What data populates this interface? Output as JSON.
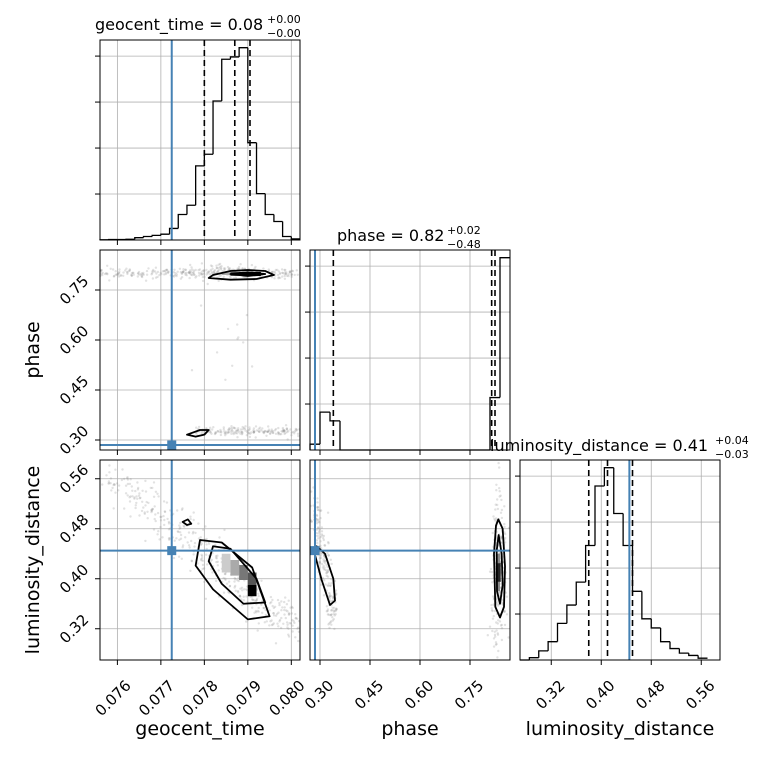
{
  "colors": {
    "truth": "#4682b4",
    "histogram": "#000000",
    "contour": "#000000",
    "samples": "#8a8a8a",
    "grid": "#b0b0b0"
  },
  "chart_data": {
    "type": "corner",
    "parameters": [
      {
        "name": "geocent_time",
        "xlabel": "geocent_time",
        "range": [
          0.0756,
          0.0802
        ],
        "ticks": [
          0.076,
          0.077,
          0.078,
          0.079,
          0.08
        ],
        "tick_labels": [
          "0.076",
          "0.077",
          "0.078",
          "0.079",
          "0.080"
        ],
        "truth": 0.07725,
        "quantiles": [
          0.078,
          0.0787,
          0.07905
        ],
        "title_value": "0.08",
        "title_plus": "+0.00",
        "title_minus": "−0.00",
        "hist_edges": [
          0.0756,
          0.0758,
          0.076,
          0.0762,
          0.0764,
          0.0766,
          0.0768,
          0.077,
          0.0772,
          0.0774,
          0.0776,
          0.0778,
          0.078,
          0.0782,
          0.0784,
          0.0786,
          0.0788,
          0.079,
          0.0792,
          0.0794,
          0.0796,
          0.0798,
          0.08,
          0.0802
        ],
        "hist_counts": [
          0.1,
          0.2,
          0.2,
          0.3,
          1,
          1.5,
          2,
          2.5,
          5,
          11,
          15,
          32,
          37,
          60,
          78,
          79,
          83,
          42,
          20,
          11,
          8,
          1.5,
          0.5
        ]
      },
      {
        "name": "phase",
        "xlabel": "phase",
        "ylabel": "phase",
        "range": [
          0.27,
          0.87
        ],
        "ticks": [
          0.3,
          0.45,
          0.6,
          0.75
        ],
        "tick_labels": [
          "0.30",
          "0.45",
          "0.60",
          "0.75"
        ],
        "truth": 0.285,
        "quantiles": [
          0.34,
          0.815,
          0.825
        ],
        "title_value": "0.82",
        "title_plus": "+0.02",
        "title_minus": "−0.48",
        "hist_edges": [
          0.27,
          0.3,
          0.33,
          0.36,
          0.39,
          0.42,
          0.45,
          0.48,
          0.51,
          0.54,
          0.57,
          0.6,
          0.63,
          0.66,
          0.69,
          0.72,
          0.75,
          0.78,
          0.81,
          0.84,
          0.87
        ],
        "hist_counts": [
          2,
          13,
          10,
          0,
          0,
          0,
          0,
          0,
          0,
          0,
          0,
          0,
          0,
          0,
          0,
          0,
          0,
          0,
          18,
          66
        ]
      },
      {
        "name": "luminosity_distance",
        "xlabel": "luminosity_distance",
        "ylabel": "luminosity_distance",
        "range": [
          0.27,
          0.59
        ],
        "ticks": [
          0.32,
          0.4,
          0.48,
          0.56
        ],
        "tick_labels": [
          "0.32",
          "0.40",
          "0.48",
          "0.56"
        ],
        "truth": 0.445,
        "quantiles": [
          0.38,
          0.41,
          0.45
        ],
        "title_value": "0.41",
        "title_plus": "+0.04",
        "title_minus": "−0.03",
        "hist_edges": [
          0.27,
          0.285,
          0.3,
          0.315,
          0.33,
          0.345,
          0.36,
          0.375,
          0.39,
          0.405,
          0.42,
          0.435,
          0.45,
          0.465,
          0.48,
          0.495,
          0.51,
          0.525,
          0.54,
          0.555,
          0.57
        ],
        "hist_counts": [
          0,
          0.5,
          2,
          4,
          8,
          12,
          17,
          25,
          38,
          42,
          32,
          25,
          15,
          9,
          7,
          4,
          2.5,
          1.5,
          1,
          0.4
        ]
      }
    ],
    "contours": {
      "phase_vs_geocent_time": [
        [
          [
            0.0782,
            0.795
          ],
          [
            0.0786,
            0.807
          ],
          [
            0.079,
            0.81
          ],
          [
            0.0794,
            0.807
          ],
          [
            0.0796,
            0.795
          ],
          [
            0.0792,
            0.783
          ],
          [
            0.0786,
            0.781
          ],
          [
            0.0781,
            0.786
          ]
        ],
        [
          [
            0.0786,
            0.798
          ],
          [
            0.079,
            0.803
          ],
          [
            0.0794,
            0.798
          ],
          [
            0.079,
            0.792
          ]
        ],
        [
          [
            0.0776,
            0.316
          ],
          [
            0.0779,
            0.33
          ],
          [
            0.0781,
            0.33
          ],
          [
            0.078,
            0.316
          ],
          [
            0.0778,
            0.31
          ]
        ]
      ],
      "luminosity_distance_vs_geocent_time": [
        [
          [
            0.0779,
            0.462
          ],
          [
            0.0784,
            0.458
          ],
          [
            0.0791,
            0.418
          ],
          [
            0.0795,
            0.34
          ],
          [
            0.079,
            0.335
          ],
          [
            0.0782,
            0.383
          ],
          [
            0.0778,
            0.421
          ]
        ],
        [
          [
            0.0782,
            0.452
          ],
          [
            0.0786,
            0.448
          ],
          [
            0.0792,
            0.4
          ],
          [
            0.0794,
            0.362
          ],
          [
            0.0789,
            0.36
          ],
          [
            0.0784,
            0.392
          ],
          [
            0.0781,
            0.428
          ]
        ],
        [
          [
            0.0775,
            0.491
          ],
          [
            0.07762,
            0.495
          ],
          [
            0.0777,
            0.488
          ],
          [
            0.0776,
            0.486
          ]
        ]
      ],
      "luminosity_distance_vs_phase": [
        [
          [
            0.28,
            0.448
          ],
          [
            0.305,
            0.398
          ],
          [
            0.33,
            0.358
          ],
          [
            0.345,
            0.365
          ],
          [
            0.34,
            0.4
          ],
          [
            0.315,
            0.44
          ],
          [
            0.29,
            0.452
          ]
        ],
        [
          [
            0.835,
            0.495
          ],
          [
            0.848,
            0.48
          ],
          [
            0.855,
            0.42
          ],
          [
            0.852,
            0.355
          ],
          [
            0.84,
            0.338
          ],
          [
            0.826,
            0.355
          ],
          [
            0.822,
            0.44
          ],
          [
            0.828,
            0.485
          ]
        ],
        [
          [
            0.836,
            0.47
          ],
          [
            0.845,
            0.44
          ],
          [
            0.848,
            0.39
          ],
          [
            0.84,
            0.36
          ],
          [
            0.831,
            0.38
          ],
          [
            0.83,
            0.445
          ]
        ]
      ]
    }
  }
}
